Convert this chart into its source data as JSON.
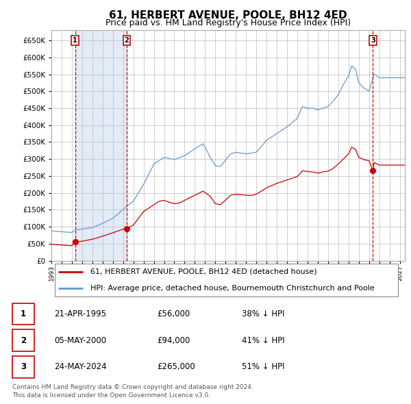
{
  "title": "61, HERBERT AVENUE, POOLE, BH12 4ED",
  "subtitle": "Price paid vs. HM Land Registry's House Price Index (HPI)",
  "ylim": [
    0,
    680000
  ],
  "yticks": [
    0,
    50000,
    100000,
    150000,
    200000,
    250000,
    300000,
    350000,
    400000,
    450000,
    500000,
    550000,
    600000,
    650000
  ],
  "xlim_start": 1993.0,
  "xlim_end": 2027.5,
  "transactions": [
    {
      "date_num": 1995.31,
      "price": 56000,
      "label": "1"
    },
    {
      "date_num": 2000.35,
      "price": 94000,
      "label": "2"
    },
    {
      "date_num": 2024.39,
      "price": 265000,
      "label": "3"
    }
  ],
  "shaded_region": [
    1995.31,
    2000.35
  ],
  "vline_color": "#cc0000",
  "hpi_color": "#6699cc",
  "price_color": "#cc0000",
  "background_color": "#ffffff",
  "grid_color": "#bbbbbb",
  "legend_line1": "61, HERBERT AVENUE, POOLE, BH12 4ED (detached house)",
  "legend_line2": "HPI: Average price, detached house, Bournemouth Christchurch and Poole",
  "table_rows": [
    {
      "num": "1",
      "date": "21-APR-1995",
      "price": "£56,000",
      "hpi": "38% ↓ HPI"
    },
    {
      "num": "2",
      "date": "05-MAY-2000",
      "price": "£94,000",
      "hpi": "41% ↓ HPI"
    },
    {
      "num": "3",
      "date": "24-MAY-2024",
      "price": "£265,000",
      "hpi": "51% ↓ HPI"
    }
  ],
  "footer": "Contains HM Land Registry data © Crown copyright and database right 2024.\nThis data is licensed under the Open Government Licence v3.0.",
  "title_fontsize": 11,
  "subtitle_fontsize": 9,
  "hpi_anchors": [
    [
      1993.0,
      88000
    ],
    [
      1994.0,
      85000
    ],
    [
      1995.0,
      83000
    ],
    [
      1995.31,
      90000
    ],
    [
      1997.0,
      97000
    ],
    [
      1998.0,
      110000
    ],
    [
      1999.0,
      125000
    ],
    [
      2000.35,
      160000
    ],
    [
      2001.0,
      175000
    ],
    [
      2002.0,
      225000
    ],
    [
      2003.0,
      285000
    ],
    [
      2004.0,
      305000
    ],
    [
      2005.0,
      298000
    ],
    [
      2006.0,
      310000
    ],
    [
      2007.0,
      330000
    ],
    [
      2007.8,
      345000
    ],
    [
      2008.0,
      335000
    ],
    [
      2008.5,
      305000
    ],
    [
      2009.0,
      280000
    ],
    [
      2009.5,
      278000
    ],
    [
      2010.5,
      315000
    ],
    [
      2011.0,
      320000
    ],
    [
      2012.0,
      315000
    ],
    [
      2013.0,
      320000
    ],
    [
      2014.0,
      355000
    ],
    [
      2015.0,
      375000
    ],
    [
      2016.0,
      395000
    ],
    [
      2017.0,
      420000
    ],
    [
      2017.5,
      455000
    ],
    [
      2018.0,
      450000
    ],
    [
      2018.5,
      450000
    ],
    [
      2019.0,
      445000
    ],
    [
      2019.5,
      450000
    ],
    [
      2020.0,
      455000
    ],
    [
      2020.5,
      470000
    ],
    [
      2021.0,
      490000
    ],
    [
      2021.5,
      520000
    ],
    [
      2022.0,
      545000
    ],
    [
      2022.3,
      575000
    ],
    [
      2022.7,
      565000
    ],
    [
      2023.0,
      525000
    ],
    [
      2023.5,
      510000
    ],
    [
      2024.0,
      500000
    ],
    [
      2024.39,
      540000
    ],
    [
      2024.5,
      550000
    ],
    [
      2024.8,
      545000
    ],
    [
      2025.0,
      540000
    ],
    [
      2027.5,
      540000
    ]
  ],
  "price_anchors": [
    [
      1993.0,
      48000
    ],
    [
      1994.0,
      46000
    ],
    [
      1995.0,
      44000
    ],
    [
      1995.31,
      56000
    ],
    [
      1996.0,
      57000
    ],
    [
      1997.0,
      63000
    ],
    [
      1998.0,
      72000
    ],
    [
      1999.0,
      82000
    ],
    [
      2000.0,
      93000
    ],
    [
      2000.35,
      94000
    ],
    [
      2001.0,
      105000
    ],
    [
      2002.0,
      145000
    ],
    [
      2003.0,
      165000
    ],
    [
      2003.5,
      175000
    ],
    [
      2004.0,
      178000
    ],
    [
      2004.5,
      172000
    ],
    [
      2005.0,
      168000
    ],
    [
      2005.5,
      170000
    ],
    [
      2006.0,
      178000
    ],
    [
      2007.0,
      193000
    ],
    [
      2007.8,
      205000
    ],
    [
      2008.5,
      190000
    ],
    [
      2009.0,
      168000
    ],
    [
      2009.5,
      165000
    ],
    [
      2010.5,
      193000
    ],
    [
      2011.0,
      196000
    ],
    [
      2012.0,
      193000
    ],
    [
      2012.5,
      192000
    ],
    [
      2013.0,
      196000
    ],
    [
      2014.0,
      215000
    ],
    [
      2015.0,
      228000
    ],
    [
      2016.0,
      238000
    ],
    [
      2017.0,
      248000
    ],
    [
      2017.5,
      265000
    ],
    [
      2018.0,
      263000
    ],
    [
      2018.5,
      262000
    ],
    [
      2019.0,
      258000
    ],
    [
      2019.5,
      262000
    ],
    [
      2020.0,
      264000
    ],
    [
      2020.5,
      272000
    ],
    [
      2021.0,
      285000
    ],
    [
      2021.5,
      300000
    ],
    [
      2022.0,
      315000
    ],
    [
      2022.3,
      335000
    ],
    [
      2022.7,
      328000
    ],
    [
      2023.0,
      305000
    ],
    [
      2023.5,
      298000
    ],
    [
      2024.0,
      295000
    ],
    [
      2024.39,
      265000
    ],
    [
      2024.5,
      290000
    ],
    [
      2024.8,
      285000
    ],
    [
      2025.0,
      282000
    ],
    [
      2027.5,
      282000
    ]
  ]
}
